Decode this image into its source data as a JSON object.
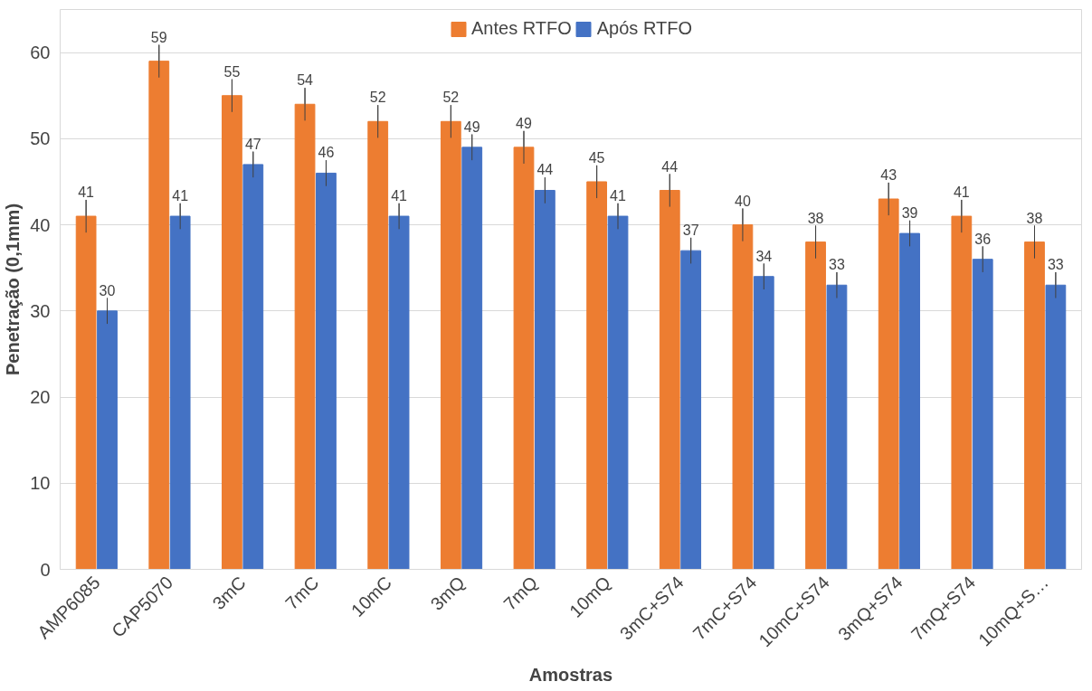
{
  "chart_data": {
    "type": "bar",
    "xlabel": "Amostras",
    "ylabel": "Penetração (0,1mm)",
    "categories": [
      "AMP6085",
      "CAP5070",
      "3mC",
      "7mC",
      "10mC",
      "3mQ",
      "7mQ",
      "10mQ",
      "3mC+S74",
      "7mC+S74",
      "10mC+S74",
      "3mQ+S74",
      "7mQ+S74",
      "10mQ+S…"
    ],
    "series": [
      {
        "name": "Antes RTFO",
        "color": "#ed7d31",
        "values": [
          41,
          59,
          55,
          54,
          52,
          52,
          49,
          45,
          44,
          40,
          38,
          43,
          41,
          38
        ],
        "errors": [
          1.9,
          1.9,
          1.9,
          1.9,
          1.9,
          1.9,
          1.9,
          1.9,
          1.9,
          1.9,
          1.9,
          1.9,
          1.9,
          1.9
        ]
      },
      {
        "name": "Após RTFO",
        "color": "#4472c4",
        "values": [
          30,
          41,
          47,
          46,
          41,
          49,
          44,
          41,
          37,
          34,
          33,
          39,
          36,
          33
        ],
        "errors": [
          1.5,
          1.5,
          1.5,
          1.5,
          1.5,
          1.5,
          1.5,
          1.5,
          1.5,
          1.5,
          1.5,
          1.5,
          1.5,
          1.5
        ]
      }
    ],
    "data_labels": true,
    "ylim": [
      0,
      65
    ],
    "yticks": [
      0,
      10,
      20,
      30,
      40,
      50,
      60
    ],
    "grid": "y",
    "legend": "top"
  }
}
